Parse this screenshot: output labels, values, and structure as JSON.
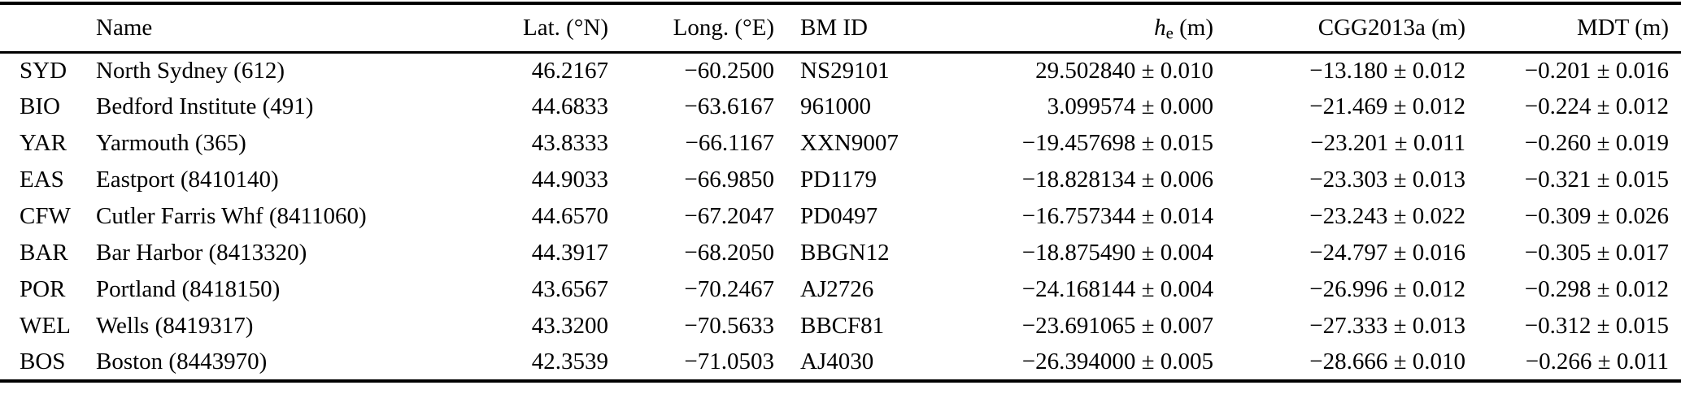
{
  "colors": {
    "text": "#000000",
    "background": "#ffffff",
    "rule": "#000000"
  },
  "table": {
    "headers": {
      "code": "",
      "name": "Name",
      "lat": "Lat. (°N)",
      "long": "Long. (°E)",
      "bm_id": "BM ID",
      "he_symbol": "h",
      "he_sub": "e",
      "he_unit": " (m)",
      "cgg": "CGG2013a (m)",
      "mdt": "MDT (m)"
    },
    "rows": [
      {
        "code": "SYD",
        "name": "North Sydney (612)",
        "lat": "46.2167",
        "long": "−60.2500",
        "bm_id": "NS29101",
        "he": "29.502840 ± 0.010",
        "cgg": "−13.180 ± 0.012",
        "mdt": "−0.201 ± 0.016"
      },
      {
        "code": "BIO",
        "name": "Bedford Institute (491)",
        "lat": "44.6833",
        "long": "−63.6167",
        "bm_id": "961000",
        "he": "3.099574 ± 0.000",
        "cgg": "−21.469 ± 0.012",
        "mdt": "−0.224 ± 0.012"
      },
      {
        "code": "YAR",
        "name": "Yarmouth (365)",
        "lat": "43.8333",
        "long": "−66.1167",
        "bm_id": "XXN9007",
        "he": "−19.457698 ± 0.015",
        "cgg": "−23.201 ± 0.011",
        "mdt": "−0.260 ± 0.019"
      },
      {
        "code": "EAS",
        "name": "Eastport (8410140)",
        "lat": "44.9033",
        "long": "−66.9850",
        "bm_id": "PD1179",
        "he": "−18.828134 ± 0.006",
        "cgg": "−23.303 ± 0.013",
        "mdt": "−0.321 ± 0.015"
      },
      {
        "code": "CFW",
        "name": "Cutler Farris Whf (8411060)",
        "lat": "44.6570",
        "long": "−67.2047",
        "bm_id": "PD0497",
        "he": "−16.757344 ± 0.014",
        "cgg": "−23.243 ± 0.022",
        "mdt": "−0.309 ± 0.026"
      },
      {
        "code": "BAR",
        "name": "Bar Harbor (8413320)",
        "lat": "44.3917",
        "long": "−68.2050",
        "bm_id": "BBGN12",
        "he": "−18.875490 ± 0.004",
        "cgg": "−24.797 ± 0.016",
        "mdt": "−0.305 ± 0.017"
      },
      {
        "code": "POR",
        "name": "Portland (8418150)",
        "lat": "43.6567",
        "long": "−70.2467",
        "bm_id": "AJ2726",
        "he": "−24.168144 ± 0.004",
        "cgg": "−26.996 ± 0.012",
        "mdt": "−0.298 ± 0.012"
      },
      {
        "code": "WEL",
        "name": "Wells (8419317)",
        "lat": "43.3200",
        "long": "−70.5633",
        "bm_id": "BBCF81",
        "he": "−23.691065 ± 0.007",
        "cgg": "−27.333 ± 0.013",
        "mdt": "−0.312 ± 0.015"
      },
      {
        "code": "BOS",
        "name": "Boston (8443970)",
        "lat": "42.3539",
        "long": "−71.0503",
        "bm_id": "AJ4030",
        "he": "−26.394000 ± 0.005",
        "cgg": "−28.666 ± 0.010",
        "mdt": "−0.266 ± 0.011"
      }
    ]
  }
}
